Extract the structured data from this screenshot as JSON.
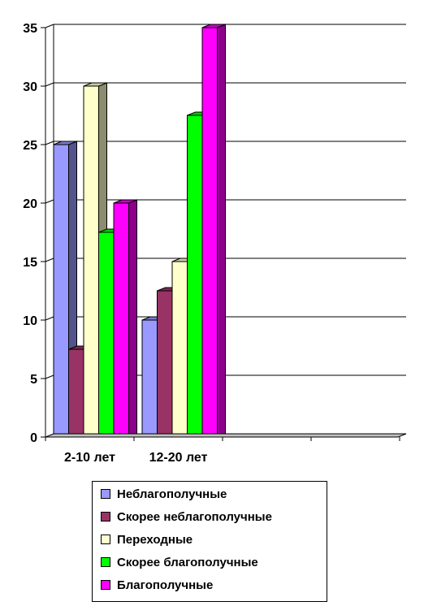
{
  "chart_data": {
    "type": "bar",
    "categories": [
      "2-10 лет",
      "12-20 лет"
    ],
    "series": [
      {
        "name": "Неблагополучные",
        "values": [
          25,
          10
        ],
        "color": "#9999ff"
      },
      {
        "name": "Скорее неблагополучные",
        "values": [
          7.5,
          12.5
        ],
        "color": "#993366"
      },
      {
        "name": "Переходные",
        "values": [
          30,
          15
        ],
        "color": "#ffffcc"
      },
      {
        "name": "Скорее благополучные",
        "values": [
          17.5,
          27.5
        ],
        "color": "#00ff00"
      },
      {
        "name": "Благополучные",
        "values": [
          20,
          35
        ],
        "color": "#ff00ff"
      }
    ],
    "ylim": [
      0,
      35
    ],
    "yticks": [
      "0",
      "5",
      "10",
      "15",
      "20",
      "25",
      "30",
      "35"
    ],
    "grid": true,
    "legend_position": "bottom",
    "style": "3d-bars"
  }
}
